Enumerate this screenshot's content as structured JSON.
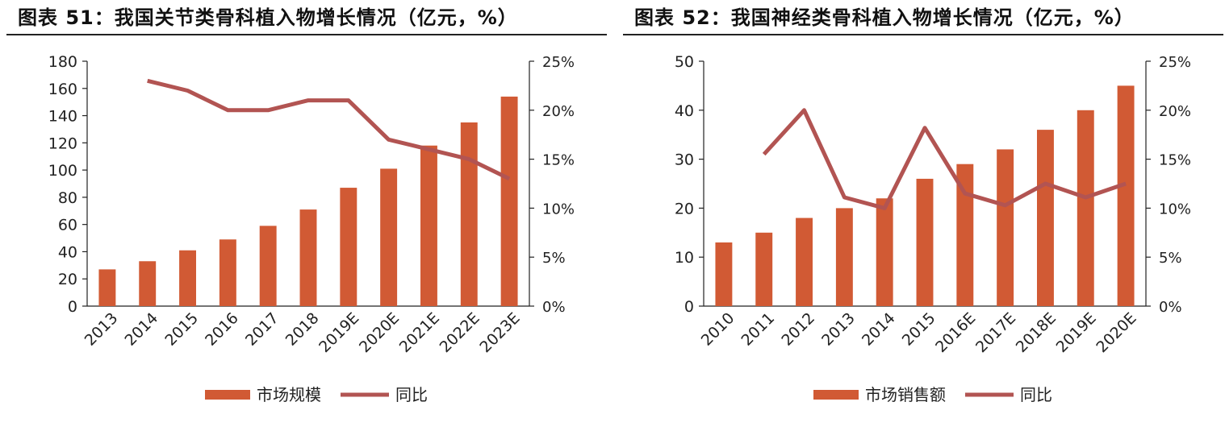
{
  "colors": {
    "bar": "#D15A34",
    "line": "#B25452",
    "axis": "#222222"
  },
  "charts": [
    {
      "title": "图表 51：我国关节类骨科植入物增长情况（亿元，%）",
      "legend_bar": "市场规模",
      "legend_line": "同比"
    },
    {
      "title": "图表 52：我国神经类骨科植入物增长情况（亿元，%）",
      "legend_bar": "市场销售额",
      "legend_line": "同比"
    }
  ],
  "chart_data": [
    {
      "type": "bar",
      "categories": [
        "2013",
        "2014",
        "2015",
        "2016",
        "2017",
        "2018",
        "2019E",
        "2020E",
        "2021E",
        "2022E",
        "2023E"
      ],
      "series": [
        {
          "name": "市场规模",
          "type": "bar",
          "axis": "left",
          "values": [
            27,
            33,
            41,
            49,
            59,
            71,
            87,
            101,
            118,
            135,
            154
          ]
        },
        {
          "name": "同比",
          "type": "line",
          "axis": "right",
          "values": [
            null,
            0.23,
            0.22,
            0.2,
            0.2,
            0.21,
            0.21,
            0.17,
            0.16,
            0.15,
            0.13
          ]
        }
      ],
      "ylim_left": [
        0,
        180
      ],
      "yticks_left": [
        "0",
        "20",
        "40",
        "60",
        "80",
        "100",
        "120",
        "140",
        "160",
        "180"
      ],
      "ylim_right": [
        0,
        0.25
      ],
      "yticks_right": [
        "0%",
        "5%",
        "10%",
        "15%",
        "20%",
        "25%"
      ],
      "grid": false,
      "legend": "bottom"
    },
    {
      "type": "bar",
      "categories": [
        "2010",
        "2011",
        "2012",
        "2013",
        "2014",
        "2015",
        "2016E",
        "2017E",
        "2018E",
        "2019E",
        "2020E"
      ],
      "series": [
        {
          "name": "市场销售额",
          "type": "bar",
          "axis": "left",
          "values": [
            13,
            15,
            18,
            20,
            22,
            26,
            29,
            32,
            36,
            40,
            45
          ]
        },
        {
          "name": "同比",
          "type": "line",
          "axis": "right",
          "values": [
            null,
            0.155,
            0.2,
            0.111,
            0.1,
            0.182,
            0.115,
            0.103,
            0.125,
            0.111,
            0.125
          ]
        }
      ],
      "ylim_left": [
        0,
        50
      ],
      "yticks_left": [
        "0",
        "10",
        "20",
        "30",
        "40",
        "50"
      ],
      "ylim_right": [
        0,
        0.25
      ],
      "yticks_right": [
        "0%",
        "5%",
        "10%",
        "15%",
        "20%",
        "25%"
      ],
      "grid": false,
      "legend": "bottom"
    }
  ]
}
